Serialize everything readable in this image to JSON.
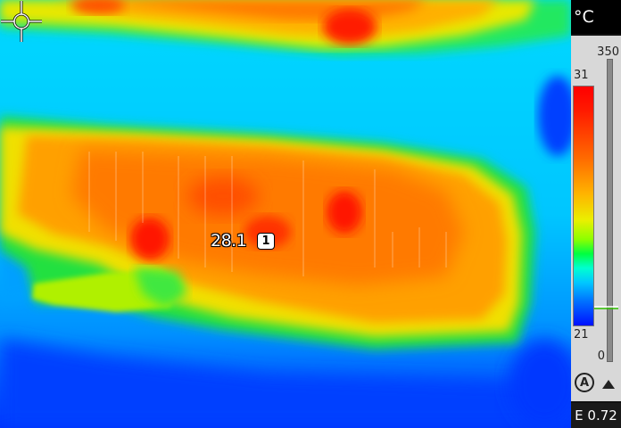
{
  "camera": {
    "unit": "°C",
    "range": {
      "max": "350",
      "min": "0"
    },
    "level": {
      "high": "31",
      "low": "21"
    },
    "emissivity": "E 0.72",
    "palette": "rainbow",
    "auto_icon_label": "A",
    "icons": [
      "auto-range-icon",
      "scroll-up-icon",
      "crosshair-icon"
    ]
  },
  "spot": {
    "id": "1",
    "temperature": "28.1"
  },
  "colors": {
    "hot": "#ff0000",
    "warm": "#ff8000",
    "mid": "#f0e800",
    "cool": "#00e060",
    "cold": "#00c8ff",
    "coldest": "#0010ff"
  }
}
